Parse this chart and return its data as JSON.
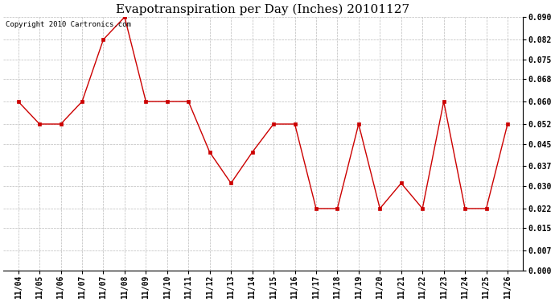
{
  "title": "Evapotranspiration per Day (Inches) 20101127",
  "copyright_text": "Copyright 2010 Cartronics.com",
  "x_labels": [
    "11/04",
    "11/05",
    "11/06",
    "11/07",
    "11/07",
    "11/08",
    "11/09",
    "11/10",
    "11/11",
    "11/12",
    "11/13",
    "11/14",
    "11/15",
    "11/16",
    "11/17",
    "11/18",
    "11/19",
    "11/20",
    "11/21",
    "11/22",
    "11/23",
    "11/24",
    "11/25",
    "11/26"
  ],
  "y_values": [
    0.06,
    0.052,
    0.052,
    0.06,
    0.082,
    0.09,
    0.06,
    0.06,
    0.06,
    0.042,
    0.031,
    0.042,
    0.052,
    0.052,
    0.022,
    0.022,
    0.052,
    0.022,
    0.031,
    0.022,
    0.06,
    0.022,
    0.022,
    0.052
  ],
  "line_color": "#cc0000",
  "marker": "s",
  "marker_size": 3,
  "marker_color": "#cc0000",
  "bg_color": "#ffffff",
  "grid_color": "#bbbbbb",
  "ylim": [
    0.0,
    0.09
  ],
  "yticks": [
    0.0,
    0.007,
    0.015,
    0.022,
    0.03,
    0.037,
    0.045,
    0.052,
    0.06,
    0.068,
    0.075,
    0.082,
    0.09
  ],
  "title_fontsize": 11,
  "copyright_fontsize": 6.5,
  "tick_fontsize": 7,
  "figsize": [
    6.9,
    3.75
  ],
  "dpi": 100
}
